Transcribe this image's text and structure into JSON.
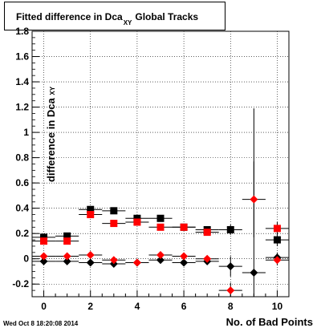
{
  "title": {
    "main": "Fitted difference in Dca",
    "subscript": "XY",
    "suffix": "Global Tracks"
  },
  "timestamp": "Wed Oct  8 18:20:08 2014",
  "chart_data": {
    "type": "scatter",
    "xlabel": "No. of Bad Points",
    "ylabel": "difference in Dca",
    "ylabel_subscript": "XY",
    "xlim": [
      -0.5,
      10.5
    ],
    "ylim": [
      -0.3,
      1.8
    ],
    "grid": true,
    "x_ticks": [
      0,
      2,
      4,
      6,
      8,
      10
    ],
    "y_ticks": [
      -0.2,
      0,
      0.2,
      0.4,
      0.6,
      0.8,
      1,
      1.2,
      1.4,
      1.6,
      1.8
    ],
    "y_tick_labels": [
      "-0.2",
      "0",
      "0.2",
      "0.4",
      "0.6",
      "0.8",
      "1",
      "1.2",
      "1.4",
      "1.6",
      "1.8"
    ],
    "series": [
      {
        "marker": "square",
        "color": "#000000",
        "points": [
          {
            "x": 0,
            "y": 0.17,
            "err": 0.02
          },
          {
            "x": 1,
            "y": 0.18,
            "err": 0.02
          },
          {
            "x": 2,
            "y": 0.39,
            "err": 0.02
          },
          {
            "x": 3,
            "y": 0.38,
            "err": 0.02
          },
          {
            "x": 4,
            "y": 0.32,
            "err": 0.02
          },
          {
            "x": 5,
            "y": 0.32,
            "err": 0.02
          },
          {
            "x": 6,
            "y": 0.25,
            "err": 0.02
          },
          {
            "x": 7,
            "y": 0.23,
            "err": 0.02
          },
          {
            "x": 8,
            "y": 0.23,
            "err": 0.04
          },
          {
            "x": 10,
            "y": 0.15,
            "err": 0.05
          }
        ]
      },
      {
        "marker": "square",
        "color": "#ff0000",
        "points": [
          {
            "x": 0,
            "y": 0.14,
            "err": 0.02
          },
          {
            "x": 1,
            "y": 0.14,
            "err": 0.02
          },
          {
            "x": 2,
            "y": 0.35,
            "err": 0.02
          },
          {
            "x": 3,
            "y": 0.28,
            "err": 0.02
          },
          {
            "x": 4,
            "y": 0.29,
            "err": 0.02
          },
          {
            "x": 5,
            "y": 0.25,
            "err": 0.02
          },
          {
            "x": 6,
            "y": 0.25,
            "err": 0.02
          },
          {
            "x": 7,
            "y": 0.21,
            "err": 0.02
          },
          {
            "x": 10,
            "y": 0.24,
            "err": 0.05
          }
        ]
      },
      {
        "marker": "diamond",
        "color": "#000000",
        "points": [
          {
            "x": 0,
            "y": -0.02,
            "err": 0.02
          },
          {
            "x": 1,
            "y": -0.02,
            "err": 0.02
          },
          {
            "x": 2,
            "y": -0.03,
            "err": 0.02
          },
          {
            "x": 3,
            "y": -0.04,
            "err": 0.02
          },
          {
            "x": 4,
            "y": -0.03,
            "err": 0.02
          },
          {
            "x": 5,
            "y": -0.01,
            "err": 0.02
          },
          {
            "x": 6,
            "y": -0.03,
            "err": 0.02
          },
          {
            "x": 7,
            "y": -0.02,
            "err": 0.02
          },
          {
            "x": 8,
            "y": -0.06,
            "err": 0.08
          },
          {
            "x": 9,
            "y": -0.11,
            "err": 1.3
          },
          {
            "x": 10,
            "y": 0.01,
            "err": 0.04
          }
        ]
      },
      {
        "marker": "diamond",
        "color": "#ff0000",
        "points": [
          {
            "x": 0,
            "y": 0.02,
            "err": 0.02
          },
          {
            "x": 1,
            "y": 0.02,
            "err": 0.02
          },
          {
            "x": 2,
            "y": 0.03,
            "err": 0.02
          },
          {
            "x": 3,
            "y": -0.01,
            "err": 0.02
          },
          {
            "x": 4,
            "y": -0.03,
            "err": 0.02
          },
          {
            "x": 5,
            "y": 0.03,
            "err": 0.02
          },
          {
            "x": 6,
            "y": 0.02,
            "err": 0.02
          },
          {
            "x": 7,
            "y": 0.0,
            "err": 0.02
          },
          {
            "x": 8,
            "y": -0.25,
            "err": 0.06
          },
          {
            "x": 9,
            "y": 0.47,
            "err": 0.3
          },
          {
            "x": 10,
            "y": -0.01,
            "err": 0.04
          }
        ]
      }
    ]
  }
}
